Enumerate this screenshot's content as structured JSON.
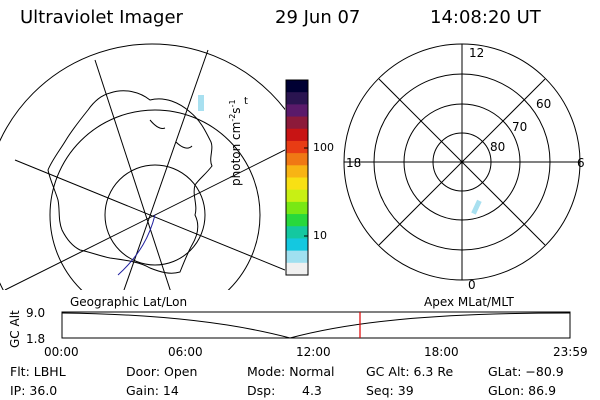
{
  "header": {
    "title": "Ultraviolet Imager",
    "date": "29 Jun 07",
    "time": "14:08:20 UT"
  },
  "colorbar": {
    "label": "photon cm",
    "label_sup1": "-2",
    "label_mid": "s",
    "label_sup2": "-1",
    "ticks": [
      "100",
      "10"
    ],
    "colors": [
      "#000033",
      "#2a1450",
      "#5a1a6a",
      "#8c1a3a",
      "#c81414",
      "#e83c14",
      "#f07814",
      "#f8b414",
      "#f8e014",
      "#c8f014",
      "#78e814",
      "#28d83c",
      "#14c8a0",
      "#14c8e0",
      "#a0e0f0",
      "#f0f0f0"
    ]
  },
  "polar_plot": {
    "mlt_labels": [
      "12",
      "18",
      "6",
      "0"
    ],
    "lat_labels": [
      "60",
      "70",
      "80"
    ]
  },
  "timeline": {
    "left_label": "Geographic Lat/Lon",
    "right_label": "Apex MLat/MLT",
    "axis_label": "GC Alt",
    "y_top": "9.0",
    "y_bottom": "1.8",
    "x_ticks": [
      "00:00",
      "06:00",
      "12:00",
      "18:00",
      "23:59"
    ],
    "marker_color": "#e00000"
  },
  "footer": {
    "row1": [
      "Flt: LBHL",
      "Door: Open",
      "Mode: Normal",
      "GC Alt: 6.3 Re",
      "GLat: −80.9"
    ],
    "row2": [
      "IP: 36.0",
      "Gain: 14",
      "Dsp:",
      "4.3",
      "Seq: 39",
      "GLon: 86.9"
    ]
  }
}
